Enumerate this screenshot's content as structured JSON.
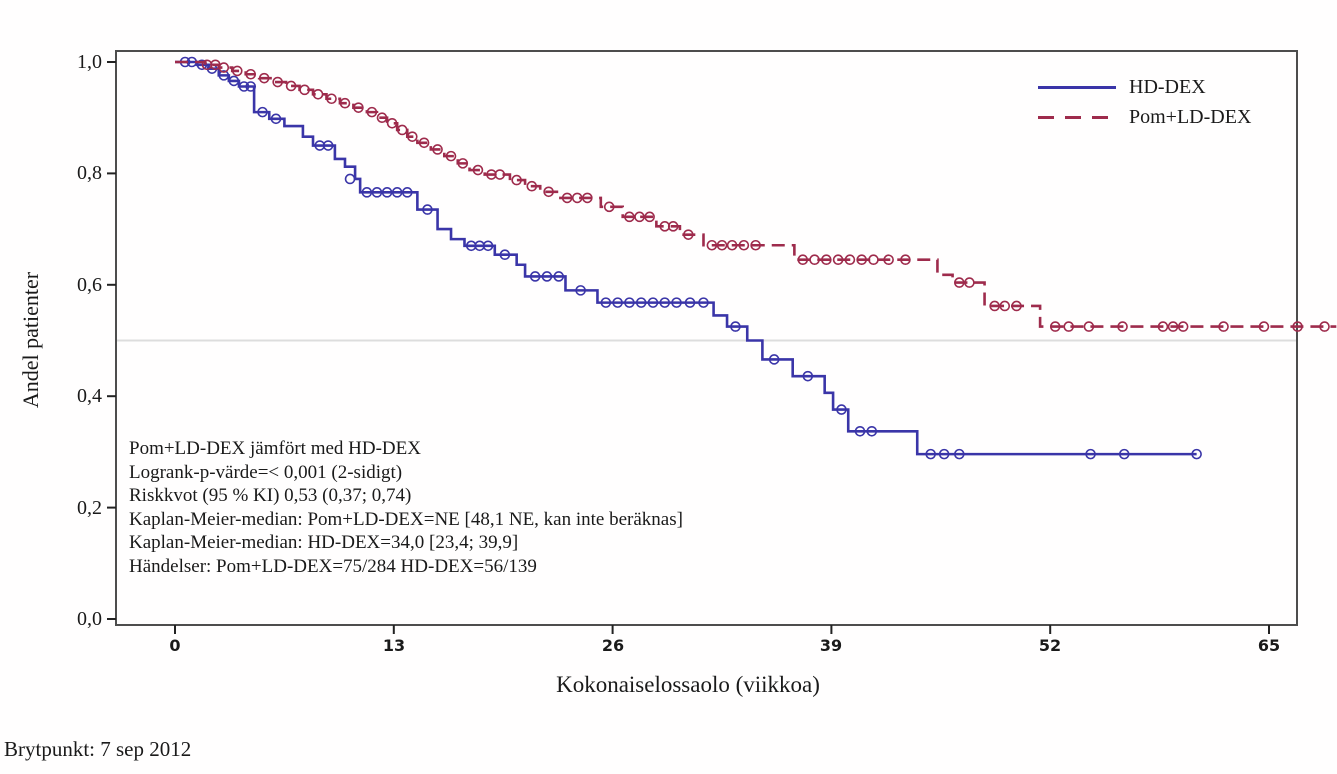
{
  "figure": {
    "footer": "Brytpunkt: 7 sep 2012"
  },
  "chart_data": {
    "type": "line",
    "variant": "kaplan-meier-step",
    "title": "",
    "xlabel": "Kokonaiselossaolo (viikkoa)",
    "ylabel": "Andel patienter",
    "xlim": [
      0,
      65
    ],
    "ylim": [
      0.0,
      1.0
    ],
    "xticks": {
      "labels": [
        "0",
        "13",
        "26",
        "39",
        "52",
        "65"
      ],
      "values": [
        0,
        13,
        26,
        39,
        52,
        65
      ]
    },
    "yticks": {
      "labels": [
        "1,0",
        "0,8",
        "0,6",
        "0,4",
        "0,2",
        "0,0"
      ],
      "values": [
        1.0,
        0.8,
        0.6,
        0.4,
        0.2,
        0.0
      ]
    },
    "reference_gridline_y": 0.5,
    "grid": "single-horizontal-at-0.5",
    "legend_position": "top-right-inside",
    "legend": [
      {
        "label": "HD-DEX",
        "color": "#3a35a8",
        "style": "solid"
      },
      {
        "label": "Pom+LD-DEX",
        "color": "#9e2b4c",
        "style": "dashed"
      }
    ],
    "annotations": [
      "Pom+LD-DEX jämfört med HD-DEX",
      "Logrank-p-värde=< 0,001 (2-sidigt)",
      "Riskkvot (95 % KI) 0,53 (0,37; 0,74)",
      "Kaplan-Meier-median: Pom+LD-DEX=NE [48,1 NE, kan inte beräknas]",
      "Kaplan-Meier-median: HD-DEX=34,0 [23,4; 39,9]",
      "Händelser: Pom+LD-DEX=75/284 HD-DEX=56/139"
    ],
    "series": [
      {
        "name": "HD-DEX",
        "color": "#3a35a8",
        "dash": false,
        "end_week": 60.7,
        "steps": [
          [
            0,
            1.0
          ],
          [
            1.3,
            0.995
          ],
          [
            2.0,
            0.988
          ],
          [
            2.6,
            0.976
          ],
          [
            3.2,
            0.966
          ],
          [
            3.8,
            0.956
          ],
          [
            4.7,
            0.91
          ],
          [
            5.6,
            0.898
          ],
          [
            6.5,
            0.885
          ],
          [
            7.6,
            0.866
          ],
          [
            8.2,
            0.85
          ],
          [
            9.5,
            0.826
          ],
          [
            10.1,
            0.812
          ],
          [
            10.7,
            0.79
          ],
          [
            11.0,
            0.766
          ],
          [
            14.4,
            0.735
          ],
          [
            15.6,
            0.7
          ],
          [
            16.4,
            0.682
          ],
          [
            17.2,
            0.67
          ],
          [
            19.0,
            0.654
          ],
          [
            20.3,
            0.636
          ],
          [
            20.8,
            0.615
          ],
          [
            23.2,
            0.59
          ],
          [
            25.1,
            0.568
          ],
          [
            32.0,
            0.545
          ],
          [
            32.8,
            0.525
          ],
          [
            34.0,
            0.5
          ],
          [
            34.9,
            0.466
          ],
          [
            36.7,
            0.436
          ],
          [
            38.6,
            0.406
          ],
          [
            39.1,
            0.376
          ],
          [
            40.0,
            0.337
          ],
          [
            44.1,
            0.296
          ]
        ],
        "censors": [
          [
            0.6,
            1.0
          ],
          [
            1.0,
            1.0
          ],
          [
            1.6,
            0.995
          ],
          [
            2.2,
            0.988
          ],
          [
            2.9,
            0.976
          ],
          [
            3.5,
            0.966
          ],
          [
            4.1,
            0.956
          ],
          [
            4.5,
            0.956
          ],
          [
            5.2,
            0.91
          ],
          [
            6.0,
            0.898
          ],
          [
            8.6,
            0.85
          ],
          [
            9.1,
            0.85
          ],
          [
            10.4,
            0.79
          ],
          [
            11.4,
            0.766
          ],
          [
            12.0,
            0.766
          ],
          [
            12.6,
            0.766
          ],
          [
            13.2,
            0.766
          ],
          [
            13.8,
            0.766
          ],
          [
            15.0,
            0.735
          ],
          [
            17.6,
            0.67
          ],
          [
            18.1,
            0.67
          ],
          [
            18.6,
            0.67
          ],
          [
            19.6,
            0.654
          ],
          [
            21.4,
            0.615
          ],
          [
            22.1,
            0.615
          ],
          [
            22.8,
            0.615
          ],
          [
            24.1,
            0.59
          ],
          [
            25.6,
            0.568
          ],
          [
            26.3,
            0.568
          ],
          [
            27.0,
            0.568
          ],
          [
            27.7,
            0.568
          ],
          [
            28.4,
            0.568
          ],
          [
            29.1,
            0.568
          ],
          [
            29.8,
            0.568
          ],
          [
            30.6,
            0.568
          ],
          [
            31.4,
            0.568
          ],
          [
            33.3,
            0.525
          ],
          [
            35.6,
            0.466
          ],
          [
            37.6,
            0.436
          ],
          [
            39.6,
            0.376
          ],
          [
            40.7,
            0.337
          ],
          [
            41.4,
            0.337
          ],
          [
            44.9,
            0.296
          ],
          [
            45.7,
            0.296
          ],
          [
            46.6,
            0.296
          ],
          [
            54.4,
            0.296
          ],
          [
            56.4,
            0.296
          ],
          [
            60.7,
            0.296
          ]
        ]
      },
      {
        "name": "Pom+LD-DEX",
        "color": "#9e2b4c",
        "dash": true,
        "end_week": 69,
        "steps": [
          [
            0,
            1.0
          ],
          [
            1.8,
            0.995
          ],
          [
            2.6,
            0.99
          ],
          [
            3.4,
            0.984
          ],
          [
            4.2,
            0.978
          ],
          [
            5.0,
            0.971
          ],
          [
            5.8,
            0.964
          ],
          [
            6.6,
            0.957
          ],
          [
            7.4,
            0.95
          ],
          [
            8.2,
            0.942
          ],
          [
            9.0,
            0.934
          ],
          [
            9.8,
            0.926
          ],
          [
            10.6,
            0.918
          ],
          [
            11.4,
            0.91
          ],
          [
            12.0,
            0.9
          ],
          [
            12.6,
            0.89
          ],
          [
            13.2,
            0.878
          ],
          [
            13.8,
            0.866
          ],
          [
            14.4,
            0.855
          ],
          [
            15.2,
            0.843
          ],
          [
            16.0,
            0.831
          ],
          [
            16.8,
            0.818
          ],
          [
            17.5,
            0.806
          ],
          [
            18.4,
            0.798
          ],
          [
            19.9,
            0.788
          ],
          [
            20.8,
            0.777
          ],
          [
            21.7,
            0.767
          ],
          [
            22.8,
            0.756
          ],
          [
            25.3,
            0.74
          ],
          [
            26.6,
            0.722
          ],
          [
            28.6,
            0.705
          ],
          [
            30.0,
            0.69
          ],
          [
            31.4,
            0.671
          ],
          [
            36.8,
            0.645
          ],
          [
            45.3,
            0.618
          ],
          [
            46.2,
            0.604
          ],
          [
            48.1,
            0.562
          ],
          [
            51.4,
            0.525
          ]
        ],
        "censors": [
          [
            1.9,
            0.995
          ],
          [
            2.4,
            0.995
          ],
          [
            2.9,
            0.99
          ],
          [
            3.7,
            0.984
          ],
          [
            4.5,
            0.978
          ],
          [
            5.3,
            0.971
          ],
          [
            6.1,
            0.964
          ],
          [
            6.9,
            0.957
          ],
          [
            7.7,
            0.95
          ],
          [
            8.5,
            0.942
          ],
          [
            9.3,
            0.934
          ],
          [
            10.1,
            0.926
          ],
          [
            10.9,
            0.918
          ],
          [
            11.7,
            0.91
          ],
          [
            12.3,
            0.9
          ],
          [
            12.9,
            0.89
          ],
          [
            13.5,
            0.878
          ],
          [
            14.1,
            0.866
          ],
          [
            14.8,
            0.855
          ],
          [
            15.6,
            0.843
          ],
          [
            16.4,
            0.831
          ],
          [
            17.1,
            0.818
          ],
          [
            18.0,
            0.806
          ],
          [
            18.8,
            0.798
          ],
          [
            19.3,
            0.798
          ],
          [
            20.3,
            0.788
          ],
          [
            21.2,
            0.777
          ],
          [
            22.2,
            0.767
          ],
          [
            23.3,
            0.756
          ],
          [
            23.9,
            0.756
          ],
          [
            24.5,
            0.756
          ],
          [
            25.8,
            0.74
          ],
          [
            27.0,
            0.722
          ],
          [
            27.6,
            0.722
          ],
          [
            28.2,
            0.722
          ],
          [
            29.1,
            0.705
          ],
          [
            29.6,
            0.705
          ],
          [
            30.5,
            0.69
          ],
          [
            31.9,
            0.671
          ],
          [
            32.5,
            0.671
          ],
          [
            33.1,
            0.671
          ],
          [
            33.8,
            0.671
          ],
          [
            34.5,
            0.671
          ],
          [
            37.3,
            0.645
          ],
          [
            38.0,
            0.645
          ],
          [
            38.7,
            0.645
          ],
          [
            39.4,
            0.645
          ],
          [
            40.1,
            0.645
          ],
          [
            40.8,
            0.645
          ],
          [
            41.5,
            0.645
          ],
          [
            42.4,
            0.645
          ],
          [
            43.4,
            0.645
          ],
          [
            46.6,
            0.604
          ],
          [
            47.2,
            0.604
          ],
          [
            48.7,
            0.562
          ],
          [
            49.3,
            0.562
          ],
          [
            50.0,
            0.562
          ],
          [
            52.3,
            0.525
          ],
          [
            53.1,
            0.525
          ],
          [
            54.3,
            0.525
          ],
          [
            56.3,
            0.525
          ],
          [
            58.7,
            0.525
          ],
          [
            59.3,
            0.525
          ],
          [
            59.9,
            0.525
          ],
          [
            62.3,
            0.525
          ],
          [
            64.7,
            0.525
          ],
          [
            66.7,
            0.525
          ],
          [
            68.3,
            0.525
          ]
        ]
      }
    ]
  }
}
